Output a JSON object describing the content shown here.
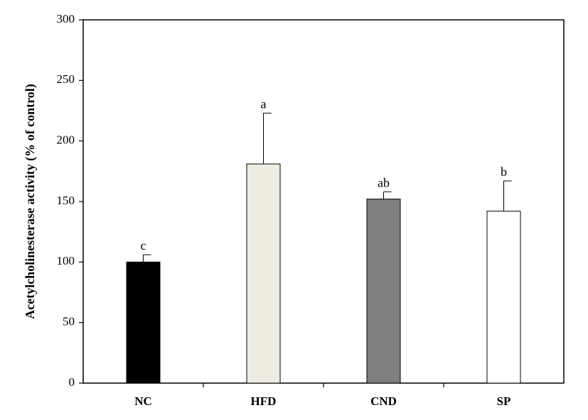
{
  "chart_data": {
    "type": "bar",
    "title": "",
    "xlabel": "",
    "ylabel": "Acetylcholinesterase activity (% of control)",
    "ylim": [
      0,
      300
    ],
    "yticks": [
      "0",
      "50",
      "100",
      "150",
      "200",
      "250",
      "300"
    ],
    "categories": [
      "NC",
      "HFD",
      "CND",
      "SP"
    ],
    "values": [
      100,
      181,
      152,
      142
    ],
    "errors": [
      6,
      42,
      6,
      25
    ],
    "significance": [
      "c",
      "a",
      "ab",
      "b"
    ],
    "colors": [
      "#000000",
      "#eeece1",
      "#7f7f7f",
      "#ffffff"
    ],
    "grid": false,
    "legend": "none"
  }
}
